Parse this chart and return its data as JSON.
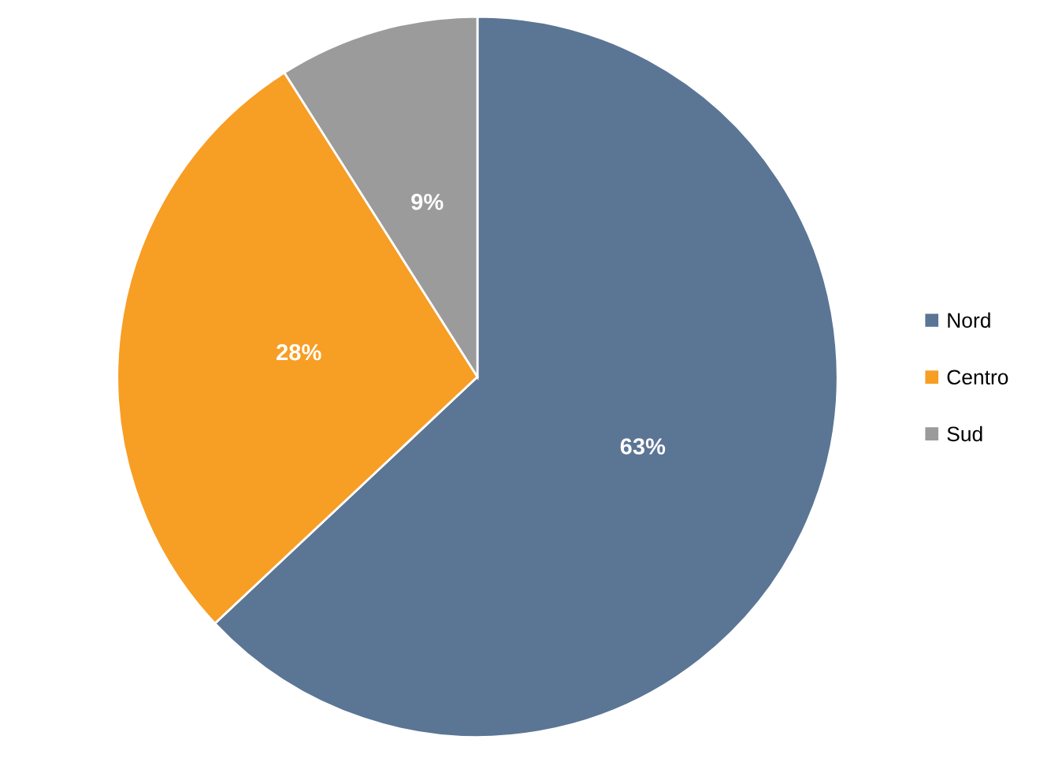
{
  "chart_data": {
    "type": "pie",
    "categories": [
      "Nord",
      "Centro",
      "Sud"
    ],
    "values": [
      63,
      28,
      9
    ],
    "colors": [
      "#5b7595",
      "#f79e25",
      "#9b9b9b"
    ],
    "value_labels": [
      "63%",
      "28%",
      "9%"
    ],
    "legend": "right"
  }
}
